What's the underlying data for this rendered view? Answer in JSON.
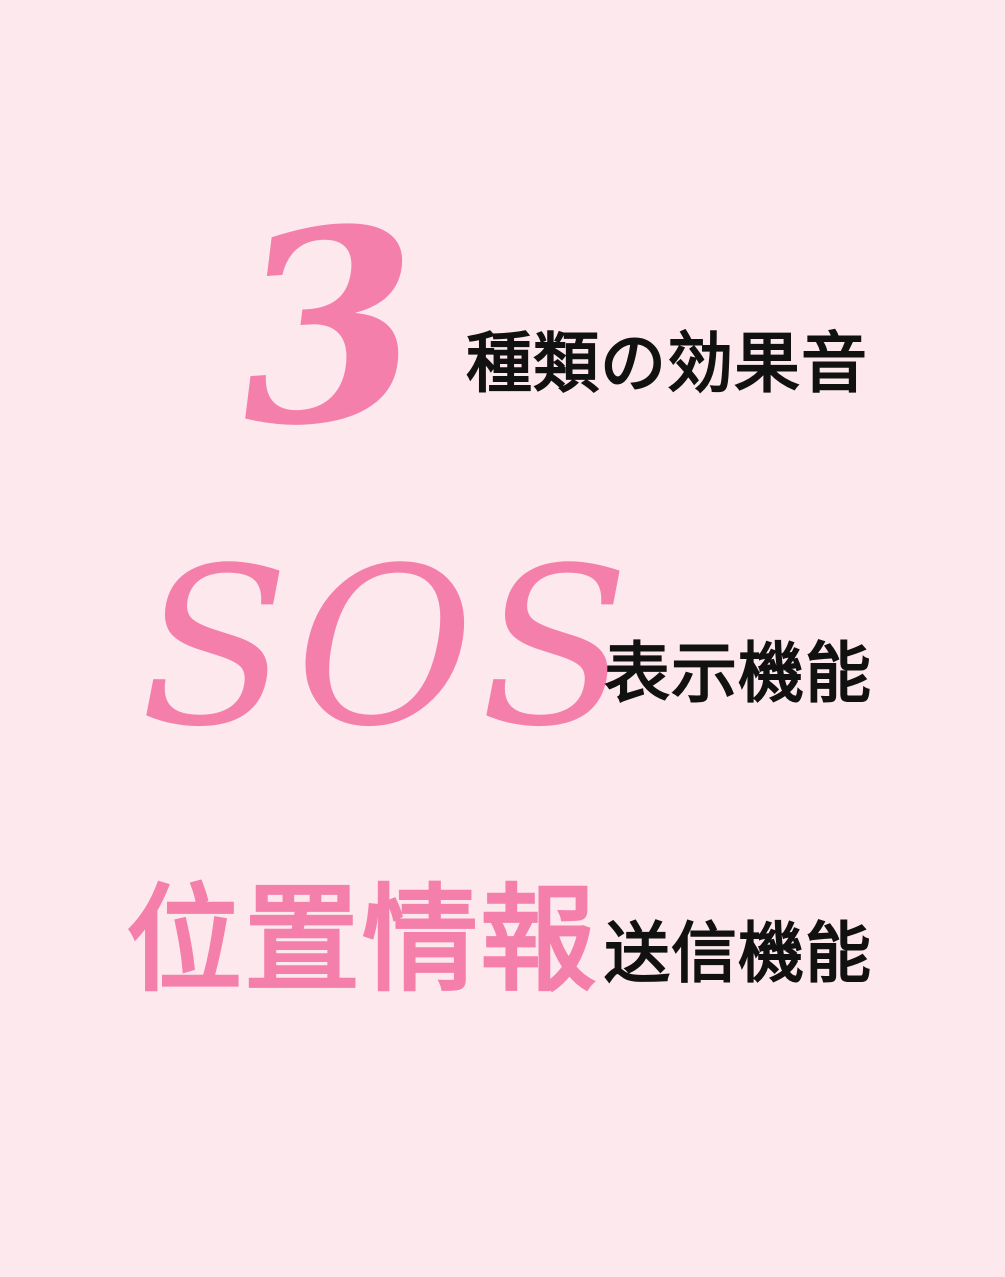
{
  "feature1": {
    "highlight": "3",
    "label": "種類の効果音"
  },
  "feature2": {
    "highlight": "SOS",
    "label": "表示機能"
  },
  "feature3": {
    "highlight": "位置情報",
    "label": "送信機能"
  },
  "colors": {
    "background": "#fde9ed",
    "accent_pink": "#f57fab",
    "text_black": "#111111"
  }
}
